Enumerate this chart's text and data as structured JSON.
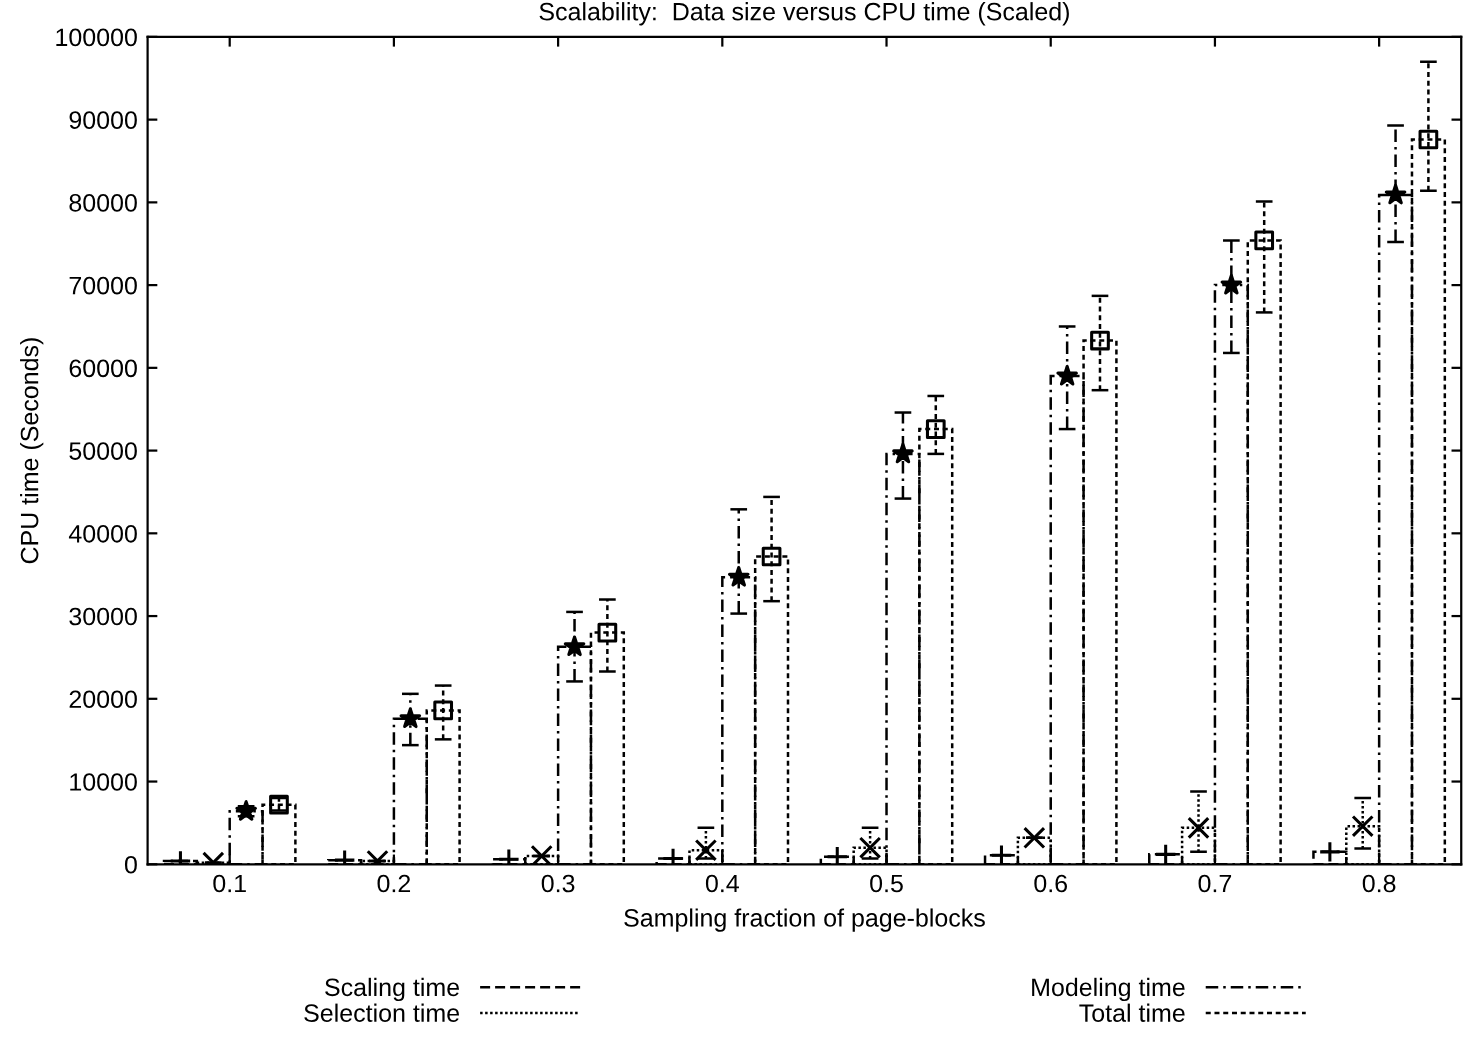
{
  "chart_data": {
    "type": "bar",
    "title": "Scalability:  Data size versus CPU time (Scaled)",
    "xlabel": "Sampling fraction of page-blocks",
    "ylabel": "CPU time (Seconds)",
    "categories": [
      "0.1",
      "0.2",
      "0.3",
      "0.4",
      "0.5",
      "0.6",
      "0.7",
      "0.8"
    ],
    "ylim": [
      0,
      100000
    ],
    "yticks": [
      0,
      10000,
      20000,
      30000,
      40000,
      50000,
      60000,
      70000,
      80000,
      90000,
      100000
    ],
    "grid": false,
    "legend": "bottom",
    "series": [
      {
        "name": "Scaling time",
        "color": "#000000",
        "line_style": "dashed",
        "values": [
          400,
          500,
          600,
          700,
          900,
          1100,
          1200,
          1500
        ]
      },
      {
        "name": "Selection time",
        "color": "#000000",
        "line_style": "dotted",
        "values": [
          200,
          400,
          1000,
          1700,
          2000,
          3200,
          4400,
          4600
        ]
      },
      {
        "name": "Modeling time",
        "color": "#000000",
        "line_style": "dashdot",
        "values": [
          6400,
          17600,
          26300,
          34700,
          49600,
          59000,
          70000,
          80900
        ]
      },
      {
        "name": "Total time",
        "color": "#000000",
        "line_style": "shortdash",
        "values": [
          7200,
          18600,
          28000,
          37200,
          52600,
          63300,
          75400,
          87600
        ]
      },
      {
        "type": "scatter",
        "color": "#000000",
        "marker": "cross",
        "x": [
          "0.1",
          "0.2",
          "0.3",
          "0.4",
          "0.5",
          "0.6",
          "0.7",
          "0.8"
        ],
        "values": [
          400,
          500,
          600,
          700,
          900,
          1100,
          1200,
          1500
        ]
      },
      {
        "type": "scatter",
        "color": "#000000",
        "marker": "x",
        "line_style": "dotted",
        "x": [
          "0.1",
          "0.2",
          "0.3",
          "0.4",
          "0.5",
          "0.6",
          "0.7",
          "0.8"
        ],
        "values": [
          200,
          400,
          1000,
          1700,
          2000,
          3200,
          4400,
          4600
        ],
        "errors": [
          null,
          null,
          null,
          [
            700,
            4400
          ],
          [
            700,
            4400
          ],
          null,
          [
            1500,
            8800
          ],
          [
            1900,
            8000
          ]
        ]
      },
      {
        "type": "scatter",
        "color": "#000000",
        "marker": "star",
        "line_style": "dashdot",
        "x": [
          "0.1",
          "0.2",
          "0.3",
          "0.4",
          "0.5",
          "0.6",
          "0.7",
          "0.8"
        ],
        "values": [
          6400,
          17600,
          26300,
          34700,
          49600,
          59000,
          70000,
          80900
        ],
        "errors": [
          [
            5800,
            7000
          ],
          [
            14400,
            20600
          ],
          [
            22100,
            30500
          ],
          [
            30300,
            42900
          ],
          [
            44200,
            54600
          ],
          [
            52600,
            65000
          ],
          [
            61800,
            75400
          ],
          [
            75200,
            89300
          ]
        ]
      },
      {
        "type": "scatter",
        "color": "#000000",
        "marker": "square",
        "line_style": "shortdash",
        "x": [
          "0.1",
          "0.2",
          "0.3",
          "0.4",
          "0.5",
          "0.6",
          "0.7",
          "0.8"
        ],
        "values": [
          7200,
          18600,
          28000,
          37200,
          52600,
          63300,
          75400,
          87600
        ],
        "errors": [
          [
            6500,
            8000
          ],
          [
            15100,
            21600
          ],
          [
            23300,
            32000
          ],
          [
            31800,
            44400
          ],
          [
            49600,
            56600
          ],
          [
            57300,
            68700
          ],
          [
            66700,
            80100
          ],
          [
            81400,
            97000
          ]
        ]
      }
    ]
  }
}
